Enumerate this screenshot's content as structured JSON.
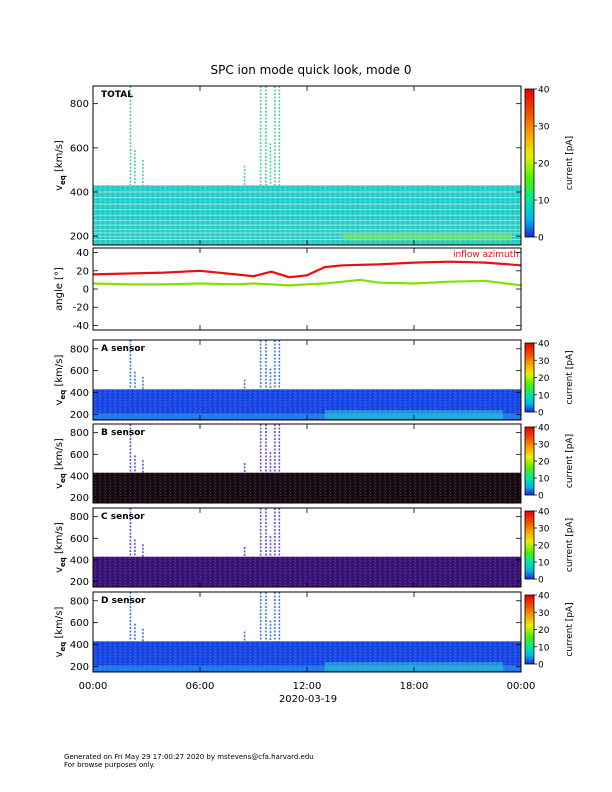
{
  "chart_data": {
    "type": "heatmap",
    "title": "SPC ion mode quick look, mode 0",
    "xlabel": "2020-03-19",
    "x_tick_labels": [
      "00:00",
      "06:00",
      "12:00",
      "18:00",
      "00:00"
    ],
    "x_range_hours": [
      0,
      24
    ],
    "panels": [
      {
        "kind": "spectrogram",
        "label": "TOTAL",
        "ylabel_main": "v",
        "ylabel_sub": "eq",
        "ylabel_unit": "[km/s]",
        "ylim": [
          160,
          880
        ],
        "yticks": [
          200,
          400,
          600,
          800
        ],
        "data_ylim": [
          160,
          430
        ],
        "colorbar_label": "current [pA]",
        "colorbar_range": [
          0,
          40
        ],
        "colorbar_ticks": [
          0,
          10,
          20,
          30,
          40
        ],
        "background": "#2cd0cc"
      },
      {
        "kind": "line",
        "ylabel_main": "angle",
        "ylabel_unit": "[°]",
        "ylim": [
          -45,
          45
        ],
        "yticks": [
          -40,
          -20,
          0,
          20,
          40
        ],
        "annotation": "inflow azimuth",
        "annotation_color": "#e81010",
        "series": [
          {
            "color": "#e81010",
            "x": [
              0,
              2,
              4,
              6,
              8,
              9,
              10,
              11,
              12,
              13,
              14,
              16,
              18,
              20,
              22,
              24
            ],
            "y": [
              16,
              17,
              18,
              20,
              16,
              14,
              19,
              13,
              15,
              24,
              26,
              27,
              29,
              30,
              29,
              26
            ]
          },
          {
            "color": "#84e000",
            "x": [
              0,
              2,
              4,
              6,
              8,
              9,
              10,
              11,
              12,
              13,
              14,
              15,
              16,
              18,
              20,
              22,
              24
            ],
            "y": [
              6,
              5,
              5,
              6,
              5,
              6,
              5,
              4,
              5,
              6,
              8,
              10,
              7,
              6,
              8,
              9,
              4
            ]
          }
        ]
      },
      {
        "kind": "spectrogram",
        "label": "A sensor",
        "ylabel_main": "v",
        "ylabel_sub": "eq",
        "ylabel_unit": "[km/s]",
        "ylim": [
          150,
          880
        ],
        "yticks": [
          200,
          400,
          600,
          800
        ],
        "data_ylim": [
          150,
          430
        ],
        "colorbar_label": "current [pA]",
        "colorbar_range": [
          0,
          40
        ],
        "colorbar_ticks": [
          0,
          10,
          20,
          30,
          40
        ],
        "background": "#1848e8"
      },
      {
        "kind": "spectrogram",
        "label": "B sensor",
        "ylabel_main": "v",
        "ylabel_sub": "eq",
        "ylabel_unit": "[km/s]",
        "ylim": [
          150,
          880
        ],
        "yticks": [
          200,
          400,
          600,
          800
        ],
        "data_ylim": [
          150,
          430
        ],
        "colorbar_label": "current [pA]",
        "colorbar_range": [
          0,
          40
        ],
        "colorbar_ticks": [
          0,
          10,
          20,
          30,
          40
        ],
        "background": "#180a14"
      },
      {
        "kind": "spectrogram",
        "label": "C sensor",
        "ylabel_main": "v",
        "ylabel_sub": "eq",
        "ylabel_unit": "[km/s]",
        "ylim": [
          150,
          880
        ],
        "yticks": [
          200,
          400,
          600,
          800
        ],
        "data_ylim": [
          150,
          430
        ],
        "colorbar_label": "current [pA]",
        "colorbar_range": [
          0,
          40
        ],
        "colorbar_ticks": [
          0,
          10,
          20,
          30,
          40
        ],
        "background": "#3a1278"
      },
      {
        "kind": "spectrogram",
        "label": "D sensor",
        "ylabel_main": "v",
        "ylabel_sub": "eq",
        "ylabel_unit": "[km/s]",
        "ylim": [
          150,
          880
        ],
        "yticks": [
          200,
          400,
          600,
          800
        ],
        "data_ylim": [
          150,
          430
        ],
        "colorbar_label": "current [pA]",
        "colorbar_range": [
          0,
          40
        ],
        "colorbar_ticks": [
          0,
          10,
          20,
          30,
          40
        ],
        "background": "#1848e8"
      }
    ],
    "bursts": [
      {
        "x_hours": 2.1,
        "top_kms": 880
      },
      {
        "x_hours": 2.35,
        "top_kms": 590
      },
      {
        "x_hours": 2.8,
        "top_kms": 545
      },
      {
        "x_hours": 8.5,
        "top_kms": 520
      },
      {
        "x_hours": 9.4,
        "top_kms": 880
      },
      {
        "x_hours": 9.7,
        "top_kms": 880
      },
      {
        "x_hours": 9.95,
        "top_kms": 620
      },
      {
        "x_hours": 10.2,
        "top_kms": 880
      },
      {
        "x_hours": 10.45,
        "top_kms": 880
      }
    ]
  },
  "footer": {
    "line1": "Generated on Fri May 29 17:00:27 2020 by mstevens@cfa.harvard.edu",
    "line2": "For browse purposes only."
  }
}
